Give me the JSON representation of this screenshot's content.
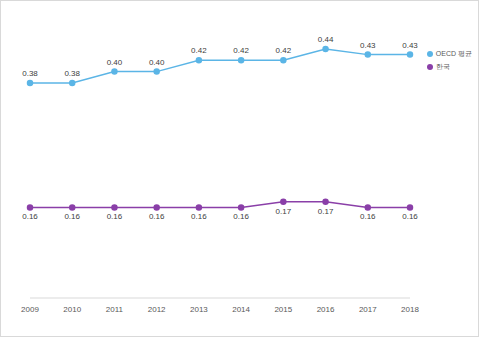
{
  "chart_data": {
    "type": "line",
    "categories": [
      "2009",
      "2010",
      "2011",
      "2012",
      "2013",
      "2014",
      "2015",
      "2016",
      "2017",
      "2018"
    ],
    "series": [
      {
        "name": "OECD 평균",
        "color": "#5bb5e6",
        "values": [
          0.38,
          0.38,
          0.4,
          0.4,
          0.42,
          0.42,
          0.42,
          0.44,
          0.43,
          0.43
        ],
        "value_labels": [
          "0.38",
          "0.38",
          "0.40",
          "0.40",
          "0.42",
          "0.42",
          "0.42",
          "0.44",
          "0.43",
          "0.43"
        ]
      },
      {
        "name": "한국",
        "color": "#8a3fa8",
        "values": [
          0.16,
          0.16,
          0.16,
          0.16,
          0.16,
          0.16,
          0.17,
          0.17,
          0.16,
          0.16
        ],
        "value_labels": [
          "0.16",
          "0.16",
          "0.16",
          "0.16",
          "0.16",
          "0.16",
          "0.17",
          "0.17",
          "0.16",
          "0.16"
        ]
      }
    ],
    "ylim": [
      0,
      0.5
    ],
    "data_labels": true,
    "tick_labels": "x",
    "grid": false,
    "legend": "right",
    "marker": "circle"
  }
}
